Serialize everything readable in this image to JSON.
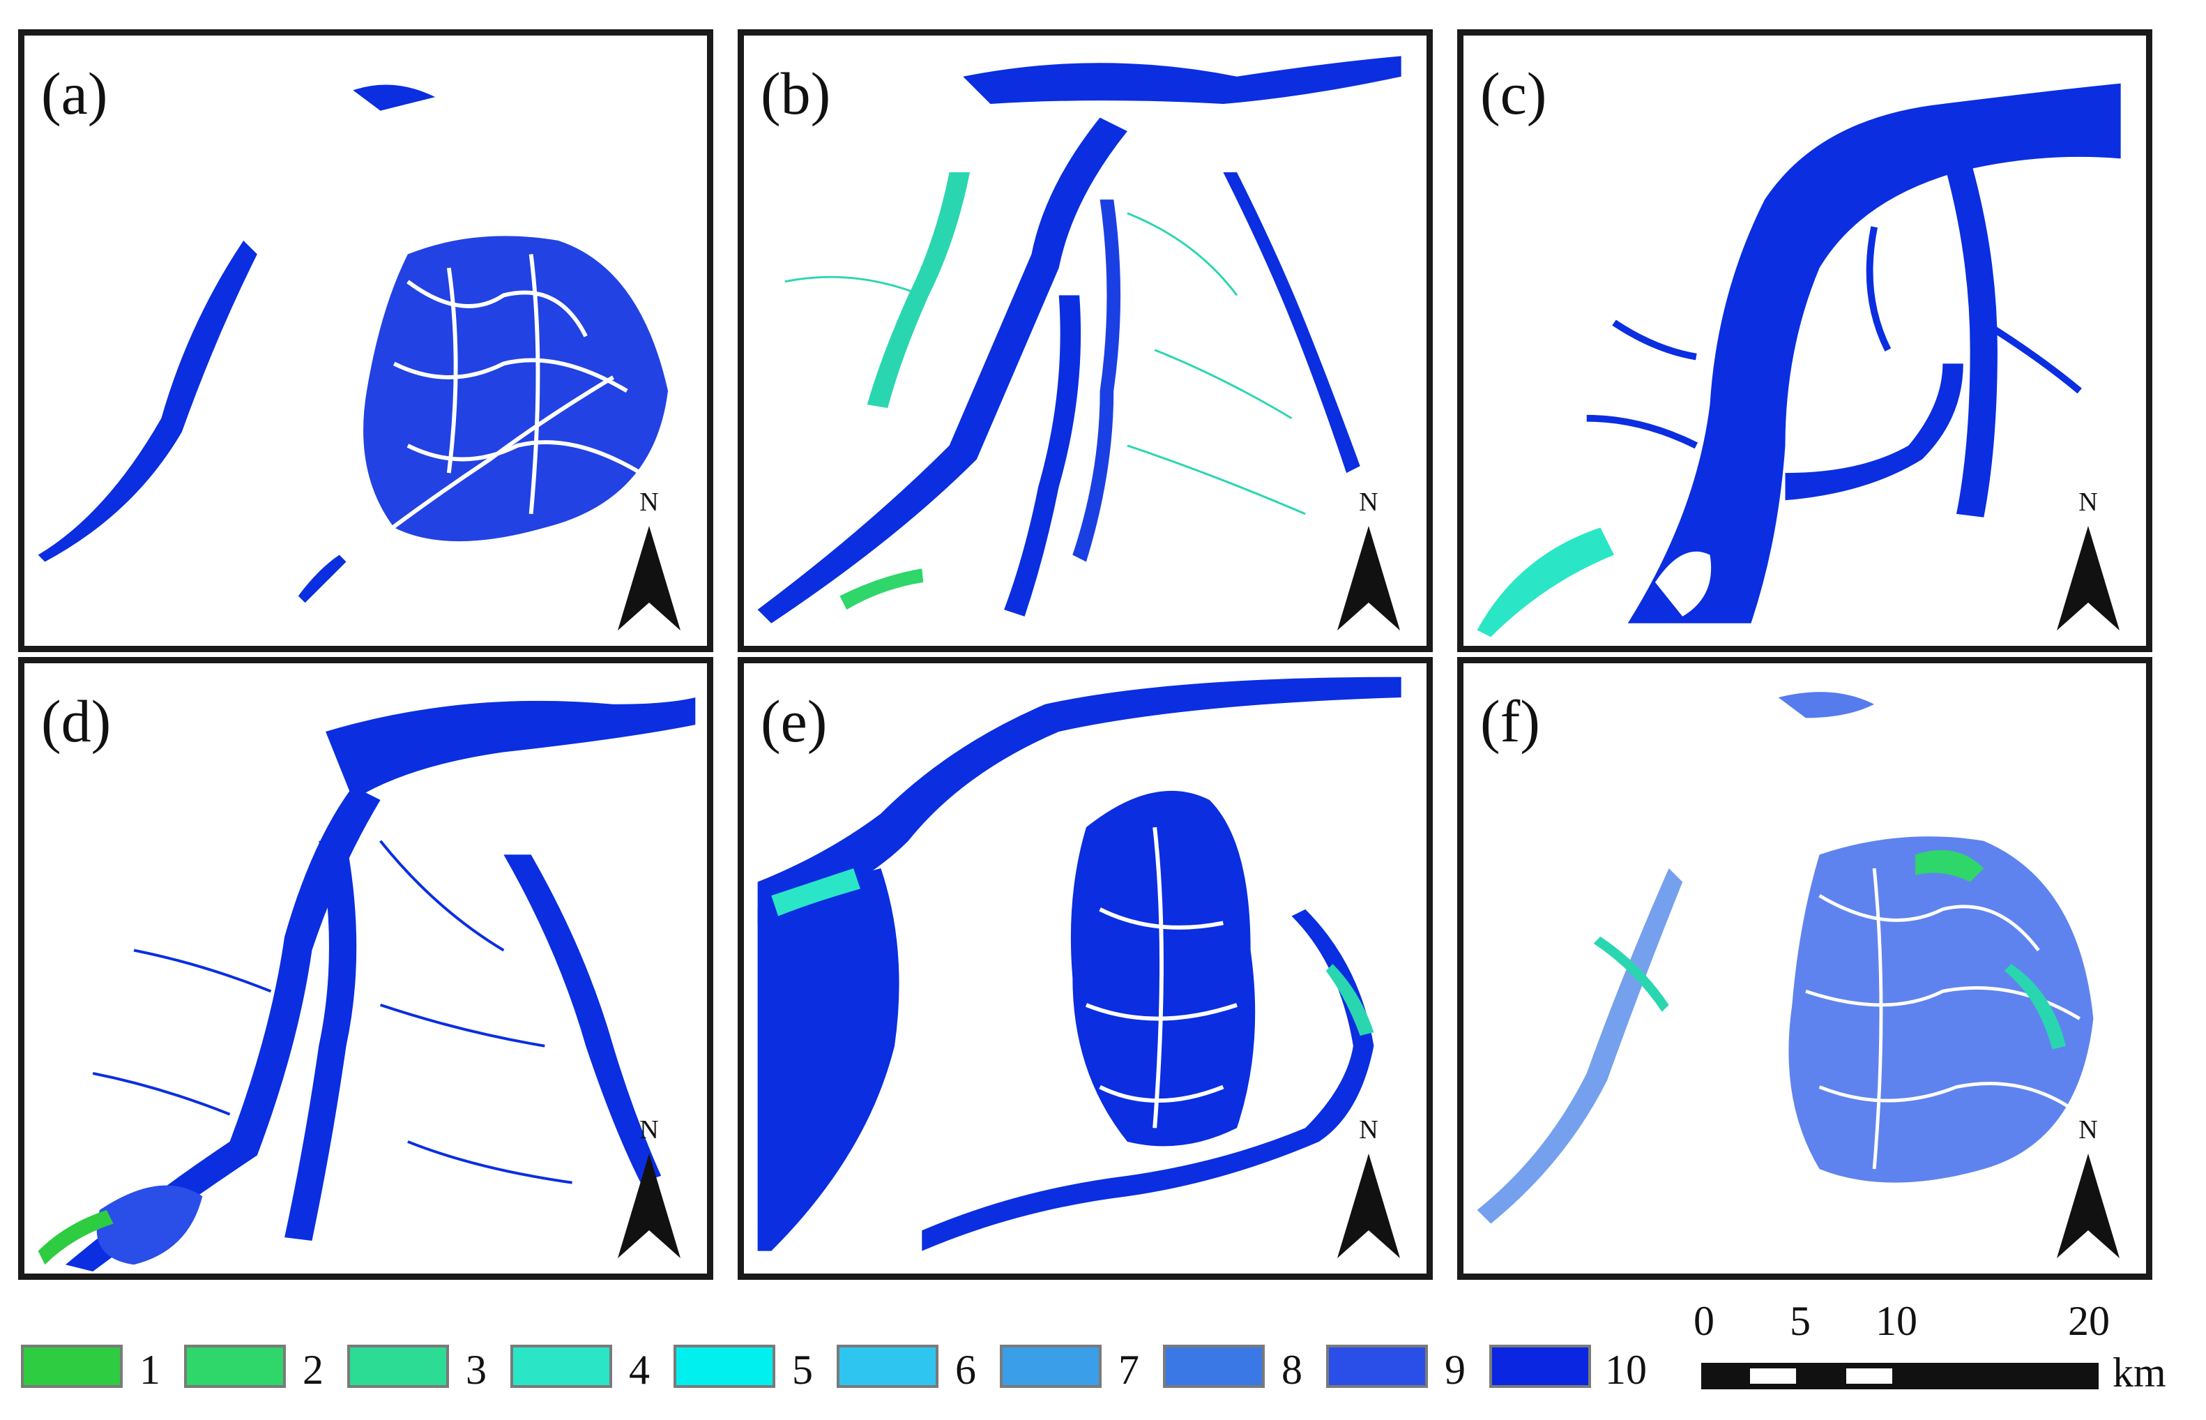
{
  "panels": [
    {
      "label": "(a)",
      "north": "N"
    },
    {
      "label": "(b)",
      "north": "N"
    },
    {
      "label": "(c)",
      "north": "N"
    },
    {
      "label": "(d)",
      "north": "N"
    },
    {
      "label": "(e)",
      "north": "N"
    },
    {
      "label": "(f)",
      "north": "N"
    }
  ],
  "legend": {
    "items": [
      {
        "label": "1",
        "color": "#2ecc40"
      },
      {
        "label": "2",
        "color": "#2fd66a"
      },
      {
        "label": "3",
        "color": "#2cdc94"
      },
      {
        "label": "4",
        "color": "#2ae6c6"
      },
      {
        "label": "5",
        "color": "#00f0f0"
      },
      {
        "label": "6",
        "color": "#2ec6f0"
      },
      {
        "label": "7",
        "color": "#3a9ee8"
      },
      {
        "label": "8",
        "color": "#3a78e6"
      },
      {
        "label": "9",
        "color": "#2a4ee8"
      },
      {
        "label": "10",
        "color": "#0a26e0"
      }
    ]
  },
  "scale_bar": {
    "ticks": [
      "0",
      "5",
      "10",
      "20"
    ],
    "unit": "km"
  },
  "colors": {
    "water_dark": "#0a2ee0",
    "water_mid": "#2a5ae8",
    "water_light": "#2ad6b0",
    "frame": "#1a1a1a"
  }
}
